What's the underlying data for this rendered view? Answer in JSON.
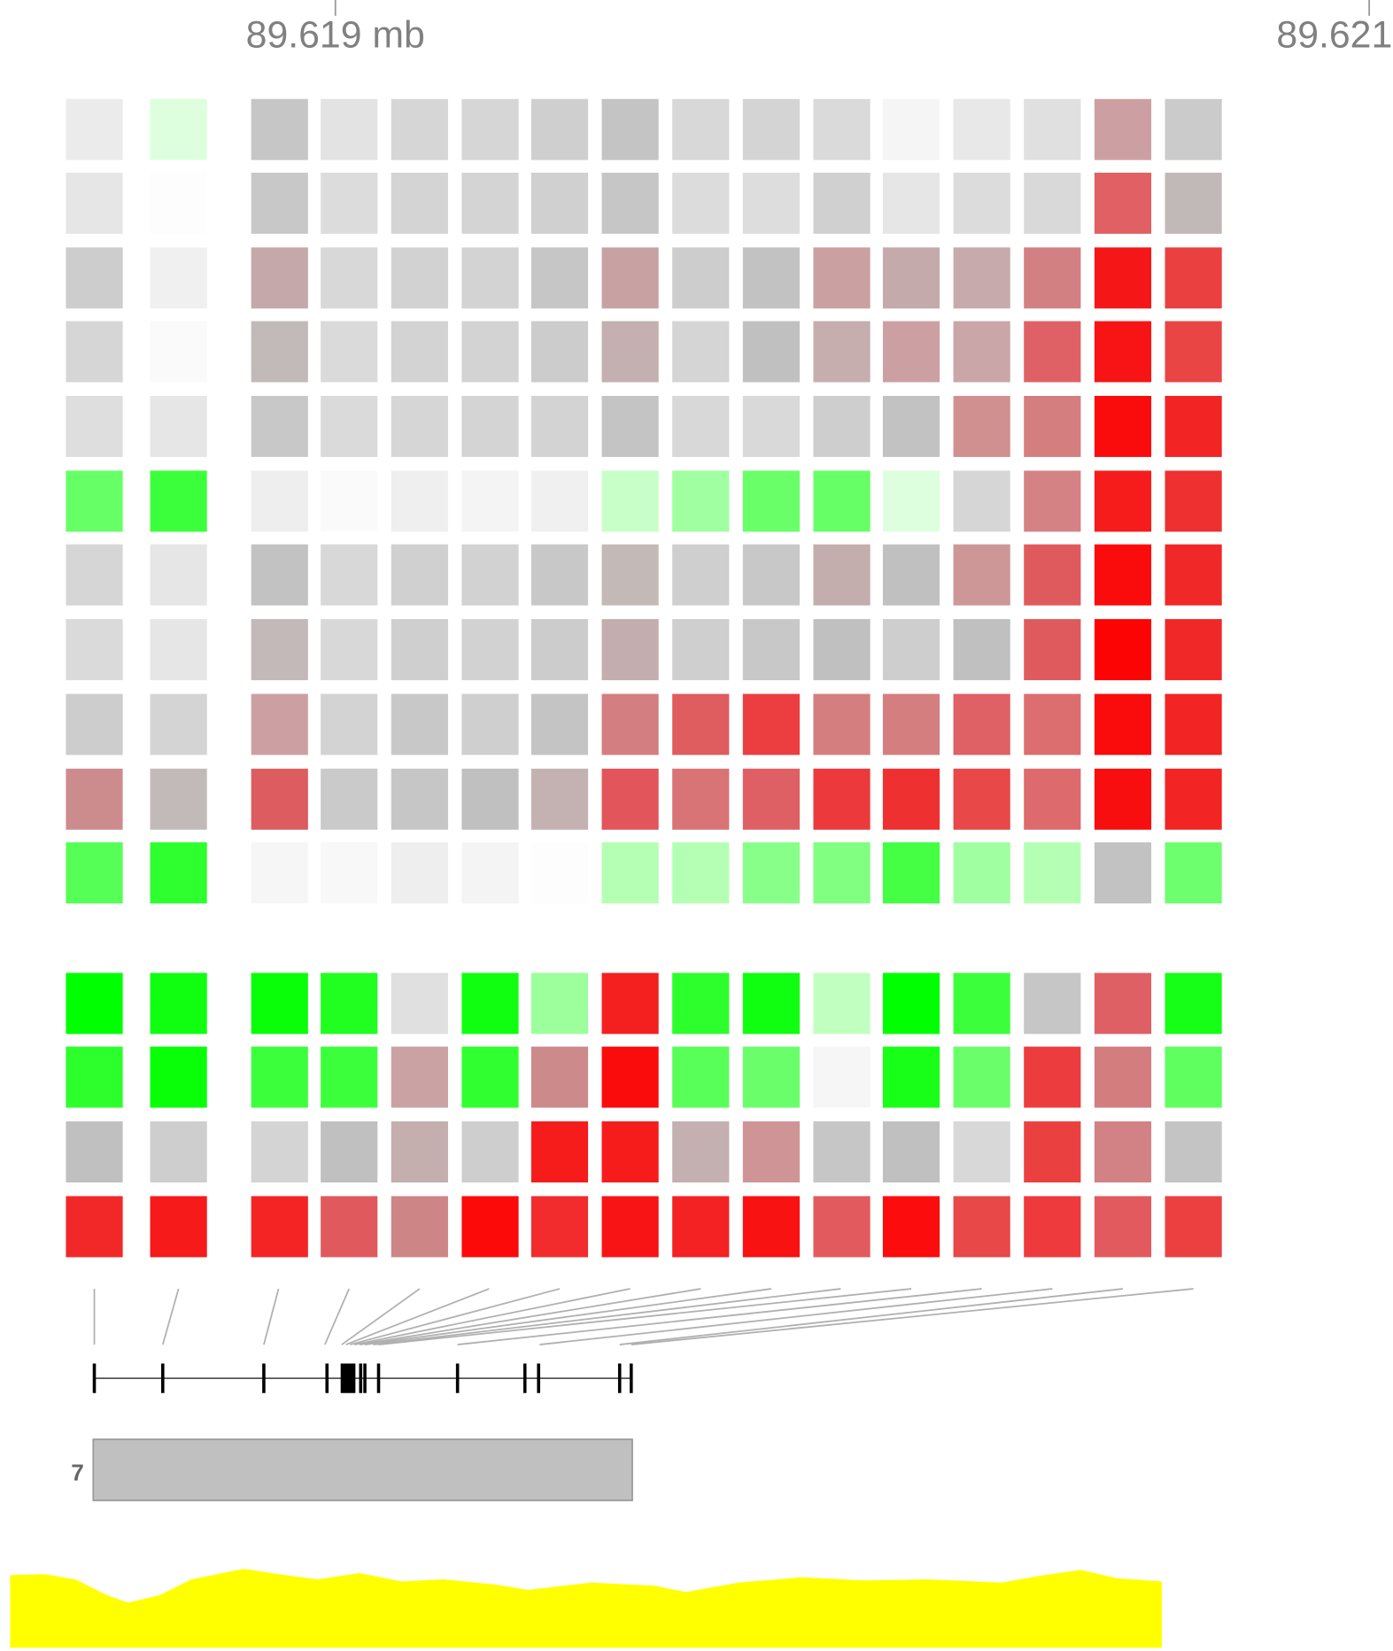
{
  "axis": {
    "labels": [
      "89.619 mb",
      "89.621"
    ]
  },
  "track": {
    "label": "7"
  }
}
